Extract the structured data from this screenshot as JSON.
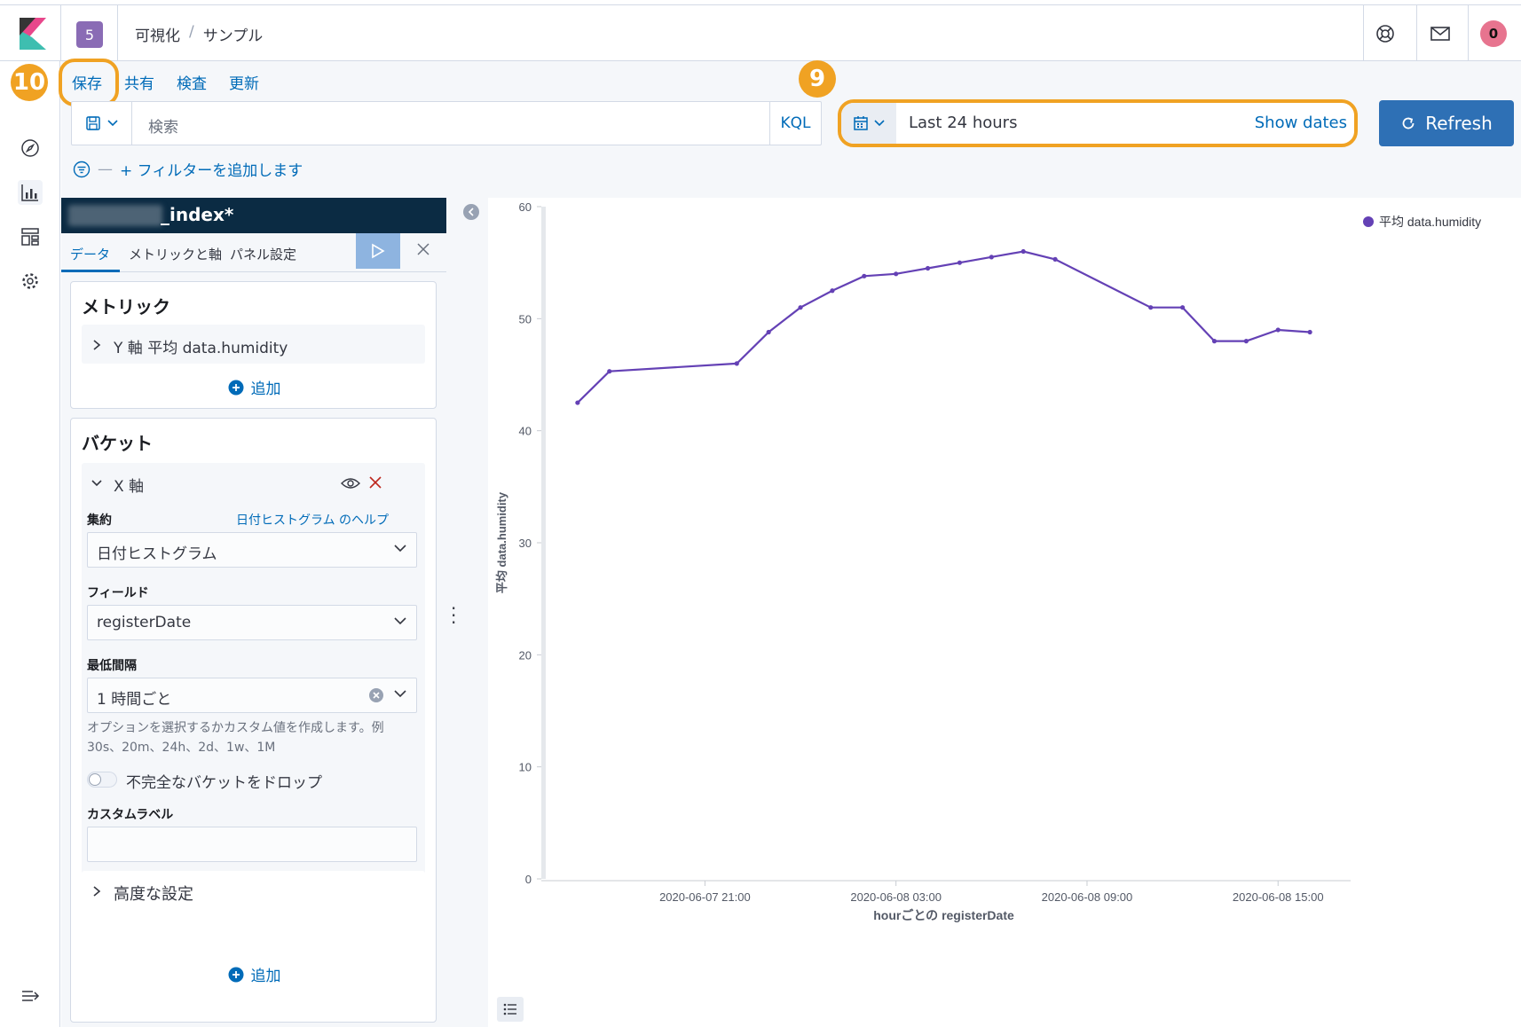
{
  "header": {
    "space_badge": "5",
    "breadcrumb_parent": "可視化",
    "breadcrumb_separator": "/",
    "breadcrumb_current": "サンプル",
    "avatar_initial": "0"
  },
  "top_menu": {
    "save": "保存",
    "share": "共有",
    "inspect": "検査",
    "refresh_link": "更新"
  },
  "query_bar": {
    "placeholder": "検索",
    "language": "KQL"
  },
  "date_picker": {
    "range": "Last 24 hours",
    "show_dates": "Show dates"
  },
  "refresh_button": "Refresh",
  "annotations": {
    "save_marker": "10",
    "date_marker": "9"
  },
  "filter": {
    "add_label": "+ フィルターを追加します"
  },
  "panel": {
    "index_suffix": "_index*",
    "tabs": [
      "データ",
      "メトリックと軸",
      "パネル設定"
    ],
    "metrics": {
      "title": "メトリック",
      "item": "Y 軸 平均 data.humidity",
      "add": "追加"
    },
    "buckets": {
      "title": "バケット",
      "item": "X 軸",
      "aggregation_label": "集約",
      "aggregation_help": "日付ヒストグラム のヘルプ",
      "aggregation_value": "日付ヒストグラム",
      "field_label": "フィールド",
      "field_value": "registerDate",
      "interval_label": "最低間隔",
      "interval_value": "1 時間ごと",
      "interval_help_1": "オプションを選択するかカスタム値を作成します。例",
      "interval_help_2": "30s、20m、24h、2d、1w、1M",
      "drop_partial": "不完全なバケットをドロップ",
      "custom_label": "カスタムラベル",
      "advanced": "高度な設定",
      "add": "追加"
    }
  },
  "chart_data": {
    "type": "line",
    "title": "",
    "xlabel": "hourごとの registerDate",
    "ylabel": "平均 data.humidity",
    "ylim": [
      0,
      60
    ],
    "yticks": [
      0,
      10,
      20,
      30,
      40,
      50,
      60
    ],
    "xticks": [
      "2020-06-07 21:00",
      "2020-06-08 03:00",
      "2020-06-08 09:00",
      "2020-06-08 15:00"
    ],
    "xtick_hours": [
      4,
      10,
      16,
      22
    ],
    "legend": "平均 data.humidity",
    "legend_position": "top-right",
    "color": "#6441b5",
    "series": [
      {
        "name": "平均 data.humidity",
        "x": [
          0,
          1,
          5,
          6,
          7,
          8,
          9,
          10,
          11,
          12,
          13,
          14,
          15,
          18,
          19,
          20,
          21,
          22,
          23
        ],
        "values": [
          42.5,
          45.3,
          46.0,
          48.8,
          51.0,
          52.5,
          53.8,
          54.0,
          54.5,
          55.0,
          55.5,
          56.0,
          55.3,
          51.0,
          51.0,
          48.0,
          48.0,
          49.0,
          48.8
        ]
      }
    ]
  }
}
